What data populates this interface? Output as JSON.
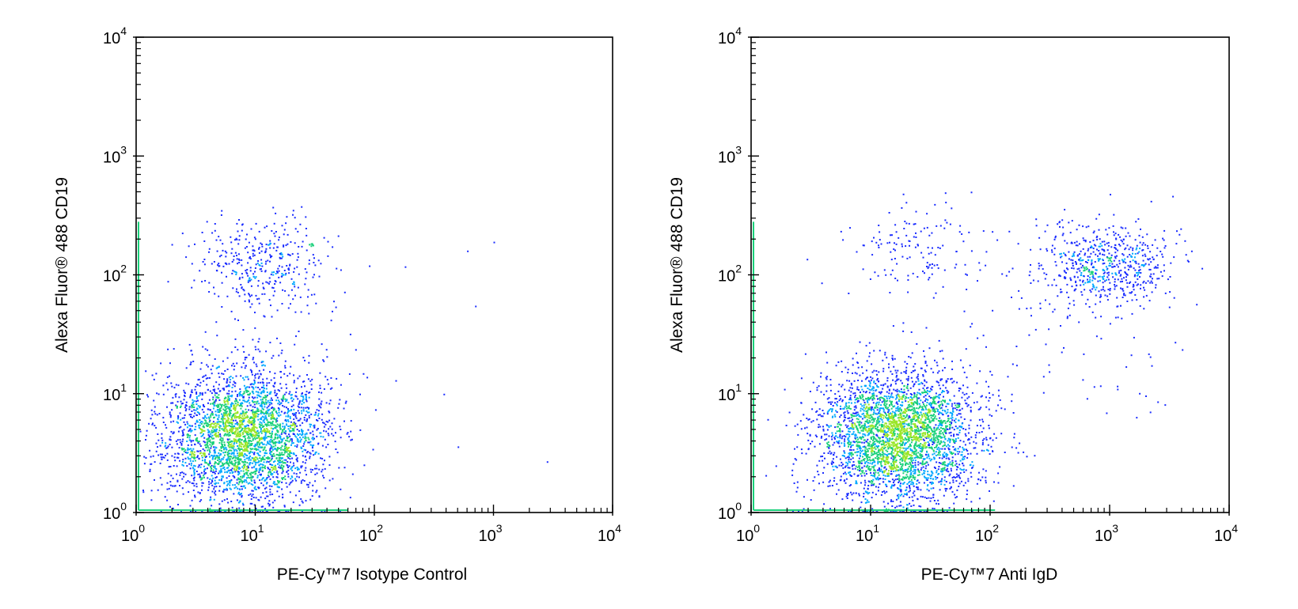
{
  "chart_data": [
    {
      "type": "scatter",
      "xlabel": "PE-Cy™7 Isotype Control",
      "ylabel": "Alexa Fluor® 488 CD19",
      "x_scale": "log",
      "y_scale": "log",
      "xlim": [
        1,
        10000
      ],
      "ylim": [
        1,
        10000
      ],
      "x_ticks": [
        1,
        10,
        100,
        1000,
        10000
      ],
      "y_ticks": [
        1,
        10,
        100,
        1000,
        10000
      ],
      "tick_base": "10",
      "tick_exponents": [
        "0",
        "1",
        "2",
        "3",
        "4"
      ],
      "grid": false,
      "colors": {
        "sparse": "#1a2cff",
        "medium": "#00a8ff",
        "dense": "#19d07a",
        "max": "#9be62a"
      },
      "populations": [
        {
          "center": [
            8,
            4.5
          ],
          "spread": [
            2.2,
            1.9
          ],
          "count": 3200
        },
        {
          "center": [
            12,
            130
          ],
          "spread": [
            1.9,
            1.5
          ],
          "count": 360
        },
        {
          "center": [
            12,
            30
          ],
          "spread": [
            2.4,
            2.0
          ],
          "count": 60
        }
      ],
      "outliers": [
        [
          600,
          160
        ],
        [
          1000,
          190
        ],
        [
          700,
          55
        ],
        [
          500,
          3.6
        ],
        [
          2800,
          2.7
        ],
        [
          180,
          118
        ],
        [
          150,
          13
        ],
        [
          380,
          10
        ],
        [
          90,
          120
        ]
      ]
    },
    {
      "type": "scatter",
      "xlabel": "PE-Cy™7 Anti IgD",
      "ylabel": "Alexa Fluor® 488 CD19",
      "x_scale": "log",
      "y_scale": "log",
      "xlim": [
        1,
        10000
      ],
      "ylim": [
        1,
        10000
      ],
      "x_ticks": [
        1,
        10,
        100,
        1000,
        10000
      ],
      "y_ticks": [
        1,
        10,
        100,
        1000,
        10000
      ],
      "tick_base": "10",
      "tick_exponents": [
        "0",
        "1",
        "2",
        "3",
        "4"
      ],
      "grid": false,
      "colors": {
        "sparse": "#1a2cff",
        "medium": "#00a8ff",
        "dense": "#19d07a",
        "max": "#9be62a"
      },
      "populations": [
        {
          "center": [
            17,
            4.5
          ],
          "spread": [
            2.1,
            1.9
          ],
          "count": 3400
        },
        {
          "center": [
            900,
            120
          ],
          "spread": [
            1.9,
            1.5
          ],
          "count": 620
        },
        {
          "center": [
            20,
            160
          ],
          "spread": [
            2.3,
            1.6
          ],
          "count": 150
        },
        {
          "center": [
            600,
            25
          ],
          "spread": [
            2.5,
            2.3
          ],
          "count": 60
        }
      ],
      "outliers": [
        [
          1000,
          480
        ],
        [
          2200,
          420
        ],
        [
          200,
          3
        ],
        [
          150,
          10
        ],
        [
          60,
          50
        ],
        [
          4800,
          160
        ]
      ]
    }
  ]
}
